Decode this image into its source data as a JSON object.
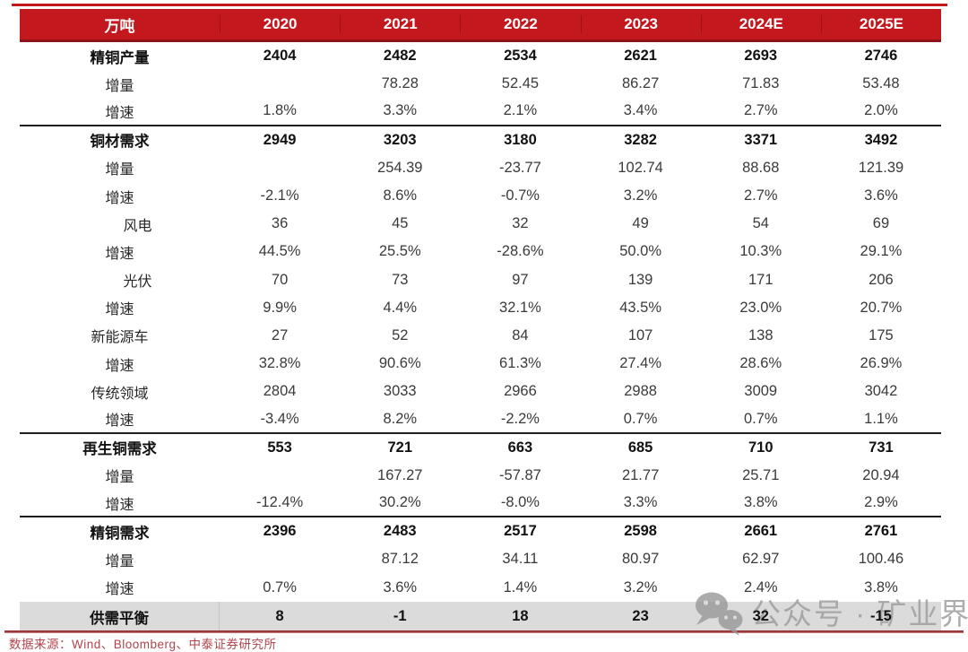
{
  "page": {
    "source_note": "数据来源：Wind、Bloomberg、中泰证券研究所",
    "watermark_label": "公众号 · 矿业界",
    "colors": {
      "header_bg": "#c2181e",
      "header_text": "#ffffff",
      "accent_top_line": "#c2181e",
      "section_divider": "#1f1f1f",
      "highlight_row_bg": "#dbdbdb",
      "bottom_line": "#b2484c",
      "source_text": "#b2434d",
      "watermark_gray": "#9c9c9c"
    }
  },
  "chart_data": {
    "type": "table",
    "unit_label": "万吨",
    "columns": [
      "2020",
      "2021",
      "2022",
      "2023",
      "2024E",
      "2025E"
    ],
    "rows": [
      {
        "label": "精铜产量",
        "bold": true,
        "indent": 0,
        "divider_below": false,
        "highlight": false,
        "values": [
          "2404",
          "2482",
          "2534",
          "2621",
          "2693",
          "2746"
        ]
      },
      {
        "label": "增量",
        "bold": false,
        "indent": 0,
        "divider_below": false,
        "highlight": false,
        "values": [
          "",
          "78.28",
          "52.45",
          "86.27",
          "71.83",
          "53.48"
        ]
      },
      {
        "label": "增速",
        "bold": false,
        "indent": 0,
        "divider_below": true,
        "highlight": false,
        "values": [
          "1.8%",
          "3.3%",
          "2.1%",
          "3.4%",
          "2.7%",
          "2.0%"
        ]
      },
      {
        "label": "铜材需求",
        "bold": true,
        "indent": 0,
        "divider_below": false,
        "highlight": false,
        "values": [
          "2949",
          "3203",
          "3180",
          "3282",
          "3371",
          "3492"
        ]
      },
      {
        "label": "增量",
        "bold": false,
        "indent": 0,
        "divider_below": false,
        "highlight": false,
        "values": [
          "",
          "254.39",
          "-23.77",
          "102.74",
          "88.68",
          "121.39"
        ]
      },
      {
        "label": "增速",
        "bold": false,
        "indent": 0,
        "divider_below": false,
        "highlight": false,
        "values": [
          "-2.1%",
          "8.6%",
          "-0.7%",
          "3.2%",
          "2.7%",
          "3.6%"
        ]
      },
      {
        "label": "风电",
        "bold": false,
        "indent": 2,
        "divider_below": false,
        "highlight": false,
        "values": [
          "36",
          "45",
          "32",
          "49",
          "54",
          "69"
        ]
      },
      {
        "label": "增速",
        "bold": false,
        "indent": 0,
        "divider_below": false,
        "highlight": false,
        "values": [
          "44.5%",
          "25.5%",
          "-28.6%",
          "50.0%",
          "10.3%",
          "29.1%"
        ]
      },
      {
        "label": "光伏",
        "bold": false,
        "indent": 2,
        "divider_below": false,
        "highlight": false,
        "values": [
          "70",
          "73",
          "97",
          "139",
          "171",
          "206"
        ]
      },
      {
        "label": "增速",
        "bold": false,
        "indent": 0,
        "divider_below": false,
        "highlight": false,
        "values": [
          "9.9%",
          "4.4%",
          "32.1%",
          "43.5%",
          "23.0%",
          "20.7%"
        ]
      },
      {
        "label": "新能源车",
        "bold": false,
        "indent": 0,
        "divider_below": false,
        "highlight": false,
        "values": [
          "27",
          "52",
          "84",
          "107",
          "138",
          "175"
        ]
      },
      {
        "label": "增速",
        "bold": false,
        "indent": 0,
        "divider_below": false,
        "highlight": false,
        "values": [
          "32.8%",
          "90.6%",
          "61.3%",
          "27.4%",
          "28.6%",
          "26.9%"
        ]
      },
      {
        "label": "传统领域",
        "bold": false,
        "indent": 0,
        "divider_below": false,
        "highlight": false,
        "values": [
          "2804",
          "3033",
          "2966",
          "2988",
          "3009",
          "3042"
        ]
      },
      {
        "label": "增速",
        "bold": false,
        "indent": 0,
        "divider_below": true,
        "highlight": false,
        "values": [
          "-3.4%",
          "8.2%",
          "-2.2%",
          "0.7%",
          "0.7%",
          "1.1%"
        ]
      },
      {
        "label": "再生铜需求",
        "bold": true,
        "indent": 0,
        "divider_below": false,
        "highlight": false,
        "values": [
          "553",
          "721",
          "663",
          "685",
          "710",
          "731"
        ]
      },
      {
        "label": "增量",
        "bold": false,
        "indent": 0,
        "divider_below": false,
        "highlight": false,
        "values": [
          "",
          "167.27",
          "-57.87",
          "21.77",
          "25.71",
          "20.94"
        ]
      },
      {
        "label": "增速",
        "bold": false,
        "indent": 0,
        "divider_below": true,
        "highlight": false,
        "values": [
          "-12.4%",
          "30.2%",
          "-8.0%",
          "3.3%",
          "3.8%",
          "2.9%"
        ]
      },
      {
        "label": "精铜需求",
        "bold": true,
        "indent": 0,
        "divider_below": false,
        "highlight": false,
        "values": [
          "2396",
          "2483",
          "2517",
          "2598",
          "2661",
          "2761"
        ]
      },
      {
        "label": "增量",
        "bold": false,
        "indent": 0,
        "divider_below": false,
        "highlight": false,
        "values": [
          "",
          "87.12",
          "34.11",
          "80.97",
          "62.97",
          "100.46"
        ]
      },
      {
        "label": "增速",
        "bold": false,
        "indent": 0,
        "divider_below": false,
        "highlight": false,
        "values": [
          "0.7%",
          "3.6%",
          "1.4%",
          "3.2%",
          "2.4%",
          "3.8%"
        ]
      },
      {
        "label": "供需平衡",
        "bold": true,
        "indent": 0,
        "divider_below": false,
        "highlight": true,
        "values": [
          "8",
          "-1",
          "18",
          "23",
          "32",
          "-15"
        ]
      }
    ]
  }
}
